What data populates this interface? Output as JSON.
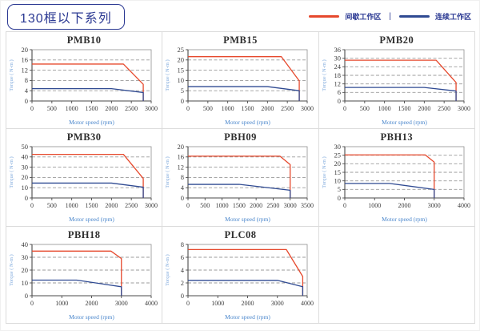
{
  "header": {
    "title": "130框以下系列",
    "legend": {
      "intermittent_label": "间歇工作区",
      "continuous_label": "连续工作区",
      "separator": "|",
      "intermittent_color": "#e6492d",
      "continuous_color": "#2f4a92"
    }
  },
  "style": {
    "grid_color": "#9b9b9b",
    "axis_color": "#4a4a4a",
    "box_color": "#8f8f8f",
    "tick_text_color": "#3c3c3c",
    "xlabel_color": "#4b87cc",
    "ylabel_color": "#7fa9dc"
  },
  "chart_data": [
    {
      "type": "line",
      "title": "PMB10",
      "xlabel": "Motor speed (rpm)",
      "ylabel": "Torque ( N-m )",
      "xlim": [
        0,
        3000
      ],
      "ylim": [
        0,
        20
      ],
      "xticks": [
        0,
        500,
        1000,
        1500,
        2000,
        2500,
        3000
      ],
      "yticks": [
        0,
        4,
        8,
        12,
        16,
        20
      ],
      "series": [
        {
          "name": "间歇工作区",
          "color": "#e6492d",
          "points": [
            [
              0,
              14.4
            ],
            [
              2300,
              14.4
            ],
            [
              2800,
              6.5
            ],
            [
              2800,
              0
            ]
          ]
        },
        {
          "name": "连续工作区",
          "color": "#2f4a92",
          "points": [
            [
              0,
              4.8
            ],
            [
              2000,
              4.8
            ],
            [
              2800,
              3.3
            ],
            [
              2800,
              0
            ]
          ]
        }
      ]
    },
    {
      "type": "line",
      "title": "PMB15",
      "xlabel": "Motor speed (rpm)",
      "ylabel": "Torque ( N-m )",
      "xlim": [
        0,
        3000
      ],
      "ylim": [
        0,
        25
      ],
      "xticks": [
        0,
        500,
        1000,
        1500,
        2000,
        2500,
        3000
      ],
      "yticks": [
        0,
        5,
        10,
        15,
        20,
        25
      ],
      "series": [
        {
          "name": "间歇工作区",
          "color": "#e6492d",
          "points": [
            [
              0,
              21.6
            ],
            [
              2350,
              21.6
            ],
            [
              2800,
              9.8
            ],
            [
              2800,
              0
            ]
          ]
        },
        {
          "name": "连续工作区",
          "color": "#2f4a92",
          "points": [
            [
              0,
              7
            ],
            [
              2000,
              7
            ],
            [
              2800,
              5
            ],
            [
              2800,
              0
            ]
          ]
        }
      ]
    },
    {
      "type": "line",
      "title": "PMB20",
      "xlabel": "Motor speed (rpm)",
      "ylabel": "Torque ( N-m )",
      "xlim": [
        0,
        3000
      ],
      "ylim": [
        0,
        36
      ],
      "xticks": [
        0,
        500,
        1000,
        1500,
        2000,
        2500,
        3000
      ],
      "yticks": [
        0,
        6,
        12,
        18,
        24,
        30,
        36
      ],
      "series": [
        {
          "name": "间歇工作区",
          "color": "#e6492d",
          "points": [
            [
              0,
              28.6
            ],
            [
              2300,
              28.6
            ],
            [
              2800,
              13
            ],
            [
              2800,
              0
            ]
          ]
        },
        {
          "name": "连续工作区",
          "color": "#2f4a92",
          "points": [
            [
              0,
              9.5
            ],
            [
              2000,
              9.5
            ],
            [
              2800,
              7
            ],
            [
              2800,
              0
            ]
          ]
        }
      ]
    },
    {
      "type": "line",
      "title": "PMB30",
      "xlabel": "Motor speed (rpm)",
      "ylabel": "Torque ( N-m )",
      "xlim": [
        0,
        3000
      ],
      "ylim": [
        0,
        50
      ],
      "xticks": [
        0,
        500,
        1000,
        1500,
        2000,
        2500,
        3000
      ],
      "yticks": [
        0,
        10,
        20,
        30,
        40,
        50
      ],
      "series": [
        {
          "name": "间歇工作区",
          "color": "#e6492d",
          "points": [
            [
              0,
              42.5
            ],
            [
              2300,
              42.5
            ],
            [
              2800,
              19
            ],
            [
              2800,
              0
            ]
          ]
        },
        {
          "name": "连续工作区",
          "color": "#2f4a92",
          "points": [
            [
              0,
              14.5
            ],
            [
              2000,
              14.5
            ],
            [
              2800,
              10.5
            ],
            [
              2800,
              0
            ]
          ]
        }
      ]
    },
    {
      "type": "line",
      "title": "PBH09",
      "xlabel": "Motor speed (rpm)",
      "ylabel": "Torque ( N-m )",
      "xlim": [
        0,
        3500
      ],
      "ylim": [
        0,
        20
      ],
      "xticks": [
        0,
        500,
        1000,
        1500,
        2000,
        2500,
        3000,
        3500
      ],
      "yticks": [
        0,
        4,
        8,
        12,
        16,
        20
      ],
      "series": [
        {
          "name": "间歇工作区",
          "color": "#e6492d",
          "points": [
            [
              0,
              16.3
            ],
            [
              2700,
              16.3
            ],
            [
              3000,
              13
            ],
            [
              3000,
              0
            ]
          ]
        },
        {
          "name": "连续工作区",
          "color": "#2f4a92",
          "points": [
            [
              0,
              5.3
            ],
            [
              1500,
              5.3
            ],
            [
              3000,
              3
            ],
            [
              3000,
              0
            ]
          ]
        }
      ]
    },
    {
      "type": "line",
      "title": "PBH13",
      "xlabel": "Motor speed (rpm)",
      "ylabel": "Torque ( N-m )",
      "xlim": [
        0,
        4000
      ],
      "ylim": [
        0,
        30
      ],
      "xticks": [
        0,
        1000,
        2000,
        3000,
        4000
      ],
      "yticks": [
        0,
        5,
        10,
        15,
        20,
        25,
        30
      ],
      "series": [
        {
          "name": "间歇工作区",
          "color": "#e6492d",
          "points": [
            [
              0,
              25.2
            ],
            [
              2700,
              25.2
            ],
            [
              3000,
              21
            ],
            [
              3000,
              0
            ]
          ]
        },
        {
          "name": "连续工作区",
          "color": "#2f4a92",
          "points": [
            [
              0,
              8.5
            ],
            [
              1500,
              8.5
            ],
            [
              3000,
              5
            ],
            [
              3000,
              0
            ]
          ]
        }
      ]
    },
    {
      "type": "line",
      "title": "PBH18",
      "xlabel": "Motor speed (rpm)",
      "ylabel": "Torque ( N-m )",
      "xlim": [
        0,
        4000
      ],
      "ylim": [
        0,
        40
      ],
      "xticks": [
        0,
        1000,
        2000,
        3000,
        4000
      ],
      "yticks": [
        0,
        10,
        20,
        30,
        40
      ],
      "series": [
        {
          "name": "间歇工作区",
          "color": "#e6492d",
          "points": [
            [
              0,
              34.8
            ],
            [
              2650,
              34.8
            ],
            [
              3000,
              29
            ],
            [
              3000,
              0
            ]
          ]
        },
        {
          "name": "连续工作区",
          "color": "#2f4a92",
          "points": [
            [
              0,
              12.2
            ],
            [
              1500,
              12.2
            ],
            [
              3000,
              7
            ],
            [
              3000,
              0
            ]
          ]
        }
      ]
    },
    {
      "type": "line",
      "title": "PLC08",
      "xlabel": "Motor speed (rpm)",
      "ylabel": "Torque ( N-m )",
      "xlim": [
        0,
        4000
      ],
      "ylim": [
        0,
        8
      ],
      "xticks": [
        0,
        1000,
        2000,
        3000,
        4000
      ],
      "yticks": [
        0,
        2,
        4,
        6,
        8
      ],
      "series": [
        {
          "name": "间歇工作区",
          "color": "#e6492d",
          "points": [
            [
              0,
              7.2
            ],
            [
              3300,
              7.2
            ],
            [
              3850,
              3
            ],
            [
              3850,
              0
            ]
          ]
        },
        {
          "name": "连续工作区",
          "color": "#2f4a92",
          "points": [
            [
              0,
              2.4
            ],
            [
              3000,
              2.4
            ],
            [
              3850,
              1.4
            ],
            [
              3850,
              0
            ]
          ]
        }
      ]
    }
  ]
}
